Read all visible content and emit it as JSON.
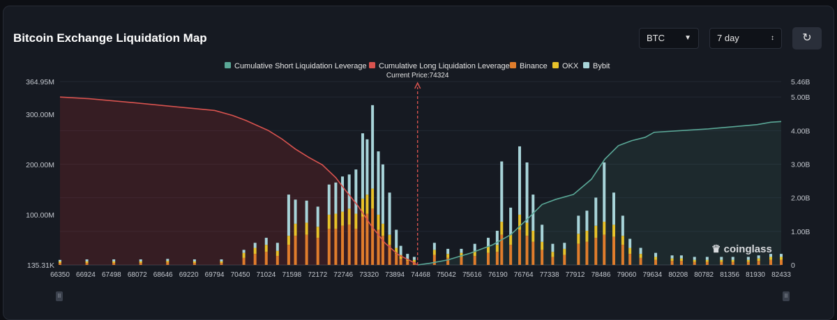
{
  "header": {
    "title": "Bitcoin Exchange Liquidation Map",
    "coin_select": "BTC",
    "period_select": "7 day",
    "refresh_icon": "refresh-icon"
  },
  "watermark": "coinglass",
  "colors": {
    "short_line": "#5aa897",
    "long_line": "#d9534f",
    "binance": "#e07d2c",
    "okx": "#e8c22a",
    "bybit": "#a8d4d9",
    "price_marker": "#d9534f"
  },
  "chart_data": {
    "type": "bar",
    "legend": [
      {
        "name": "Cumulative Short Liquidation Leverage",
        "color": "#5aa897"
      },
      {
        "name": "Cumulative Long Liquidation Leverage",
        "color": "#d9534f"
      },
      {
        "name": "Binance",
        "color": "#e07d2c"
      },
      {
        "name": "OKX",
        "color": "#e8c22a"
      },
      {
        "name": "Bybit",
        "color": "#a8d4d9"
      }
    ],
    "x_tick_labels": [
      "66350",
      "66924",
      "67498",
      "68072",
      "68646",
      "69220",
      "69794",
      "70450",
      "71024",
      "71598",
      "72172",
      "72746",
      "73320",
      "73894",
      "74468",
      "75042",
      "75616",
      "76190",
      "76764",
      "77338",
      "77912",
      "78486",
      "79060",
      "79634",
      "80208",
      "80782",
      "81356",
      "81930",
      "82433"
    ],
    "y_left_ticks": [
      "364.95M",
      "300.00M",
      "200.00M",
      "100.00M",
      "135.31K"
    ],
    "y_left_tick_values": [
      364.95,
      300,
      200,
      100,
      0
    ],
    "y_left_range": [
      0,
      364.95
    ],
    "y_right_ticks": [
      "5.46B",
      "5.00B",
      "4.00B",
      "3.00B",
      "2.00B",
      "1.00B",
      "0"
    ],
    "y_right_tick_values": [
      5.46,
      5.0,
      4.0,
      3.0,
      2.0,
      1.0,
      0
    ],
    "y_right_range": [
      0,
      5.46
    ],
    "price_min": 66350,
    "price_max": 82433,
    "current_price": 74324,
    "current_price_label": "Current Price:74324",
    "cumulative_long": {
      "name": "Cumulative Long Liquidation Leverage",
      "x": [
        66350,
        67000,
        68000,
        69000,
        69800,
        70200,
        70500,
        71000,
        71300,
        71600,
        71900,
        72200,
        72500,
        72700,
        73000,
        73300,
        73600,
        73900,
        74200,
        74324
      ],
      "y": [
        5.0,
        4.95,
        4.83,
        4.7,
        4.6,
        4.45,
        4.3,
        4.0,
        3.75,
        3.45,
        3.2,
        2.98,
        2.6,
        2.25,
        1.75,
        1.15,
        0.65,
        0.3,
        0.1,
        0
      ]
    },
    "cumulative_short": {
      "name": "Cumulative Short Liquidation Leverage",
      "x": [
        74324,
        74600,
        75000,
        75500,
        76000,
        76400,
        76800,
        77100,
        77400,
        77800,
        78200,
        78500,
        78800,
        79100,
        79400,
        79600,
        80200,
        80800,
        81400,
        81900,
        82200,
        82433
      ],
      "y": [
        0,
        0.05,
        0.15,
        0.35,
        0.6,
        0.9,
        1.4,
        1.8,
        1.95,
        2.1,
        2.55,
        3.15,
        3.55,
        3.7,
        3.8,
        3.95,
        4.0,
        4.05,
        4.12,
        4.18,
        4.25,
        4.27
      ]
    },
    "bars": {
      "comment": "aggregate liquidation leverage per price level, in millions, split by exchange",
      "x": [
        66350,
        66950,
        67550,
        68150,
        68750,
        69350,
        69950,
        70450,
        70700,
        70950,
        71200,
        71450,
        71600,
        71850,
        72100,
        72350,
        72500,
        72650,
        72800,
        72950,
        73100,
        73200,
        73320,
        73450,
        73550,
        73700,
        73850,
        73950,
        74100,
        74250,
        74700,
        75000,
        75300,
        75600,
        75900,
        76100,
        76200,
        76400,
        76600,
        76764,
        76900,
        77100,
        77338,
        77600,
        77912,
        78100,
        78300,
        78486,
        78700,
        78900,
        79060,
        79300,
        79634,
        80000,
        80208,
        80500,
        80782,
        81100,
        81356,
        81700,
        81930,
        82200,
        82433
      ],
      "binance": [
        4,
        4,
        4,
        4,
        5,
        4,
        4,
        14,
        22,
        26,
        18,
        40,
        58,
        60,
        54,
        72,
        72,
        78,
        80,
        72,
        96,
        102,
        112,
        70,
        58,
        40,
        22,
        12,
        8,
        6,
        20,
        14,
        16,
        18,
        24,
        26,
        60,
        40,
        70,
        58,
        46,
        30,
        16,
        20,
        42,
        46,
        54,
        60,
        56,
        40,
        22,
        14,
        10,
        8,
        8,
        6,
        6,
        6,
        6,
        6,
        8,
        10,
        10
      ],
      "okx": [
        3,
        3,
        3,
        3,
        3,
        3,
        3,
        10,
        12,
        14,
        10,
        18,
        24,
        24,
        22,
        28,
        30,
        28,
        32,
        30,
        36,
        38,
        40,
        30,
        24,
        20,
        12,
        8,
        4,
        4,
        10,
        8,
        8,
        10,
        12,
        14,
        26,
        20,
        30,
        26,
        22,
        16,
        10,
        12,
        20,
        22,
        24,
        26,
        24,
        18,
        12,
        8,
        6,
        5,
        5,
        4,
        4,
        4,
        4,
        4,
        5,
        6,
        6
      ],
      "bybit": [
        3,
        4,
        4,
        4,
        4,
        4,
        4,
        6,
        10,
        14,
        16,
        82,
        48,
        44,
        40,
        60,
        62,
        70,
        68,
        88,
        130,
        110,
        166,
        126,
        118,
        84,
        36,
        18,
        10,
        6,
        14,
        10,
        8,
        14,
        18,
        28,
        120,
        54,
        136,
        120,
        72,
        34,
        16,
        12,
        36,
        40,
        56,
        118,
        64,
        40,
        18,
        12,
        8,
        6,
        6,
        6,
        6,
        6,
        6,
        6,
        6,
        6,
        6
      ]
    }
  }
}
